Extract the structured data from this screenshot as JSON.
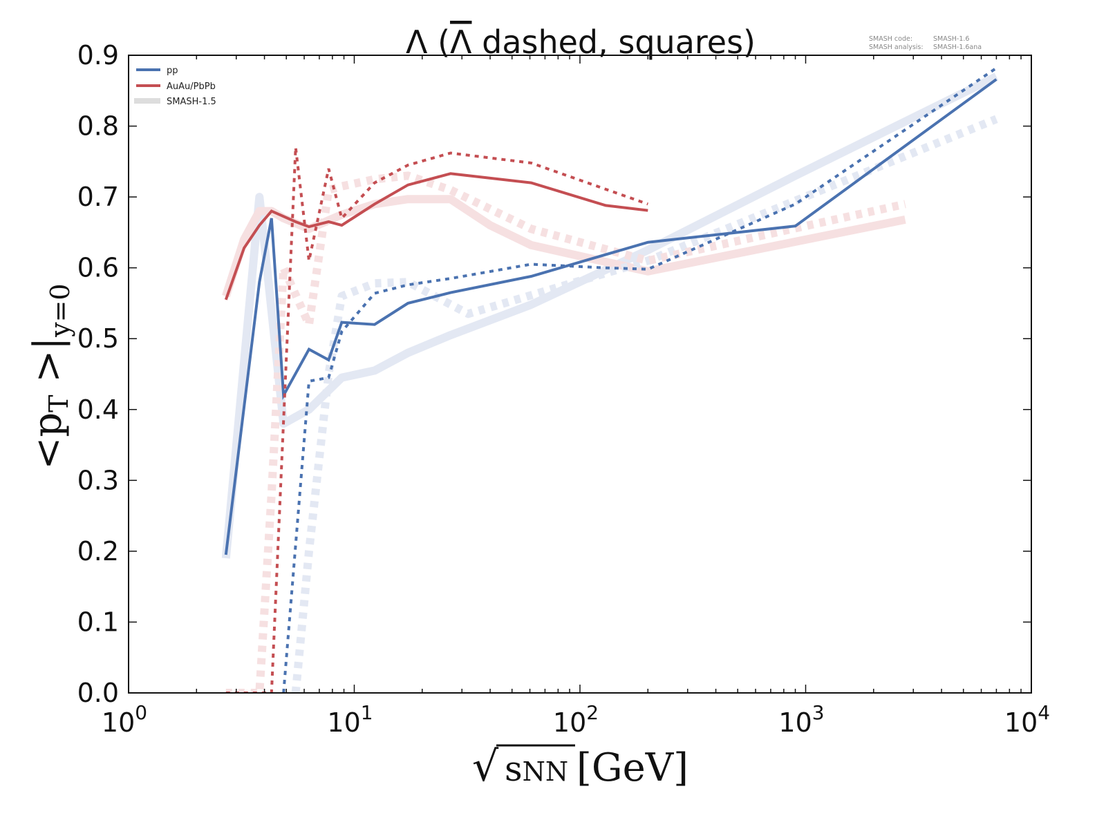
{
  "chart_data": {
    "type": "line",
    "title": "Λ (Λ̄ dashed, squares)",
    "title_parts": {
      "lambda": "Λ",
      "open": " (",
      "antilambda": "Λ",
      "rest": " dashed, squares)"
    },
    "xlabel": "√sNN [GeV]",
    "xlabel_parts": {
      "sqrt": "√",
      "var": "s",
      "sub": "NN",
      "unit": "[GeV]"
    },
    "ylabel": "<pT>|y=0",
    "ylabel_parts": {
      "open": "<p",
      "sub1": "T",
      "close": " >|",
      "sub2": "y=0"
    },
    "xscale": "log",
    "xlim": [
      1,
      10000
    ],
    "ylim": [
      0.0,
      0.9
    ],
    "xticks": [
      {
        "value": 1,
        "base": "10",
        "exp": "0"
      },
      {
        "value": 10,
        "base": "10",
        "exp": "1"
      },
      {
        "value": 100,
        "base": "10",
        "exp": "2"
      },
      {
        "value": 1000,
        "base": "10",
        "exp": "3"
      },
      {
        "value": 10000,
        "base": "10",
        "exp": "4"
      }
    ],
    "yticks": [
      "0.0",
      "0.1",
      "0.2",
      "0.3",
      "0.4",
      "0.5",
      "0.6",
      "0.7",
      "0.8",
      "0.9"
    ],
    "grid": false,
    "legend": {
      "placement": "top-left",
      "entries": [
        {
          "label": "pp",
          "color": "#4a72b0"
        },
        {
          "label": "AuAu/PbPb",
          "color": "#c44e52"
        },
        {
          "label": "SMASH-1.5",
          "color": "#dddddd"
        }
      ]
    },
    "annotation": {
      "lines": [
        {
          "key": "SMASH code:",
          "value": "SMASH-1.6"
        },
        {
          "key": "SMASH analysis:",
          "value": "SMASH-1.6ana"
        }
      ],
      "placement": "top-right"
    },
    "colors": {
      "pp": "#4a72b0",
      "aa": "#c44e52",
      "pp_old": "#e3e8f3",
      "aa_old": "#f6e0e1"
    },
    "series": [
      {
        "name": "pp Λ (SMASH-1.5)",
        "system": "pp",
        "particle": "Lambda",
        "version": "SMASH-1.5",
        "style": "solid",
        "x": [
          2.7,
          3.8,
          4.86,
          6.3,
          8.8,
          12.3,
          17.3,
          26.7,
          60.8,
          200,
          900,
          7000
        ],
        "y": [
          0.19,
          0.7,
          0.38,
          0.4,
          0.445,
          0.455,
          0.48,
          0.505,
          0.548,
          0.625,
          0.73,
          0.87
        ]
      },
      {
        "name": "AuAu/PbPb Λ (SMASH-1.5)",
        "system": "AA",
        "particle": "Lambda",
        "version": "SMASH-1.5",
        "style": "solid",
        "x": [
          2.7,
          3.25,
          3.8,
          4.3,
          4.86,
          6.3,
          8.8,
          12.3,
          17.3,
          26.7,
          40,
          60.8,
          200,
          2760
        ],
        "y": [
          0.56,
          0.64,
          0.68,
          0.68,
          0.67,
          0.655,
          0.675,
          0.69,
          0.697,
          0.697,
          0.66,
          0.632,
          0.595,
          0.668
        ]
      },
      {
        "name": "pp anti-Λ (SMASH-1.5)",
        "system": "pp",
        "particle": "anti-Lambda",
        "version": "SMASH-1.5",
        "style": "dashed",
        "x": [
          5.5,
          6.3,
          7.7,
          8.8,
          12.3,
          17.3,
          32,
          200,
          7000
        ],
        "y": [
          0.0,
          0.2,
          0.45,
          0.56,
          0.578,
          0.58,
          0.535,
          0.61,
          0.81
        ]
      },
      {
        "name": "AuAu/PbPb anti-Λ (SMASH-1.5)",
        "system": "AA",
        "particle": "anti-Lambda",
        "version": "SMASH-1.5",
        "style": "dashed",
        "x": [
          2.7,
          3.8,
          4.3,
          4.86,
          6.3,
          7.7,
          8.8,
          12.3,
          17.3,
          26.7,
          60.8,
          200,
          2760
        ],
        "y": [
          0.0,
          0.0,
          0.28,
          0.6,
          0.52,
          0.71,
          0.715,
          0.725,
          0.73,
          0.71,
          0.655,
          0.61,
          0.69
        ]
      },
      {
        "name": "pp Λ",
        "system": "pp",
        "particle": "Lambda",
        "version": "SMASH-1.6",
        "style": "solid",
        "x": [
          2.7,
          3.8,
          4.3,
          4.86,
          6.3,
          7.7,
          8.8,
          12.3,
          17.3,
          26.7,
          60.8,
          200,
          900,
          7000
        ],
        "y": [
          0.195,
          0.58,
          0.67,
          0.42,
          0.485,
          0.47,
          0.523,
          0.52,
          0.55,
          0.565,
          0.588,
          0.636,
          0.659,
          0.866
        ]
      },
      {
        "name": "AuAu/PbPb Λ",
        "system": "AA",
        "particle": "Lambda",
        "version": "SMASH-1.6",
        "style": "solid",
        "x": [
          2.7,
          3.25,
          3.8,
          4.3,
          5.5,
          6.3,
          7.7,
          8.8,
          12.3,
          17.3,
          26.7,
          60.8,
          130,
          200
        ],
        "y": [
          0.555,
          0.628,
          0.66,
          0.68,
          0.665,
          0.658,
          0.665,
          0.66,
          0.69,
          0.717,
          0.733,
          0.72,
          0.688,
          0.681
        ]
      },
      {
        "name": "pp anti-Λ",
        "system": "pp",
        "particle": "anti-Lambda",
        "version": "SMASH-1.6",
        "style": "dashed",
        "x": [
          4.86,
          6.3,
          7.7,
          8.8,
          12.3,
          17.3,
          26.7,
          60.8,
          130,
          200,
          900,
          7000
        ],
        "y": [
          0.0,
          0.44,
          0.445,
          0.51,
          0.564,
          0.576,
          0.585,
          0.605,
          0.6,
          0.598,
          0.69,
          0.882
        ]
      },
      {
        "name": "AuAu/PbPb anti-Λ",
        "system": "AA",
        "particle": "anti-Lambda",
        "version": "SMASH-1.6",
        "style": "dashed",
        "x": [
          2.7,
          3.8,
          4.3,
          5.5,
          6.3,
          7.7,
          8.8,
          12.3,
          17.3,
          26.7,
          60.8,
          200
        ],
        "y": [
          0.0,
          0.0,
          0.0,
          0.77,
          0.61,
          0.74,
          0.67,
          0.72,
          0.745,
          0.762,
          0.748,
          0.69
        ]
      }
    ]
  }
}
